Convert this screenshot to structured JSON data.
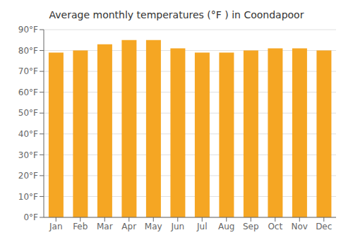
{
  "chart_data": {
    "type": "bar",
    "title": "Average monthly temperatures (°F ) in Coondapoor",
    "categories": [
      "Jan",
      "Feb",
      "Mar",
      "Apr",
      "May",
      "Jun",
      "Jul",
      "Aug",
      "Sep",
      "Oct",
      "Nov",
      "Dec"
    ],
    "values": [
      79,
      80,
      83,
      85,
      85,
      81,
      79,
      79,
      80,
      81,
      81,
      80
    ],
    "color": "#F5A623",
    "ylim": [
      0,
      90
    ],
    "yticks": [
      {
        "value": 0,
        "label": "0°F"
      },
      {
        "value": 10,
        "label": "10°F"
      },
      {
        "value": 20,
        "label": "20°F"
      },
      {
        "value": 30,
        "label": "30°F"
      },
      {
        "value": 40,
        "label": "40°F"
      },
      {
        "value": 50,
        "label": "50°F"
      },
      {
        "value": 60,
        "label": "60°F"
      },
      {
        "value": 70,
        "label": "70°F"
      },
      {
        "value": 80,
        "label": "80°F"
      },
      {
        "value": 90,
        "label": "90°F"
      }
    ],
    "grid": true
  }
}
